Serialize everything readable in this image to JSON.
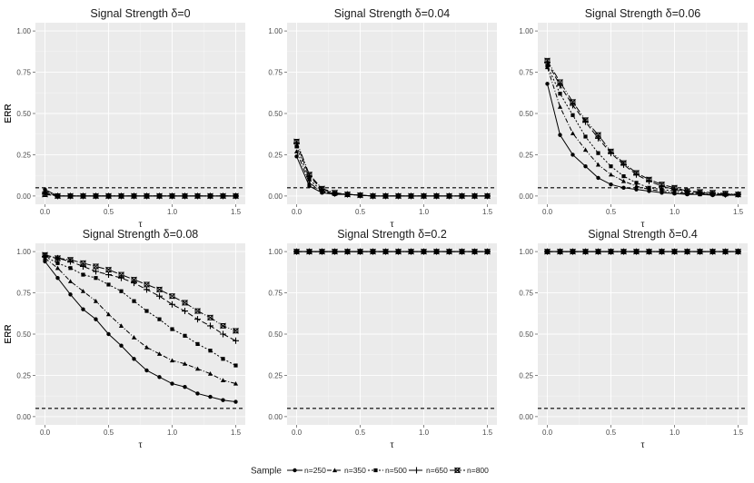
{
  "chart_data": {
    "type": "line",
    "x": [
      0,
      0.1,
      0.2,
      0.3,
      0.4,
      0.5,
      0.6,
      0.7,
      0.8,
      0.9,
      1.0,
      1.1,
      1.2,
      1.3,
      1.4,
      1.5
    ],
    "xlabel": "τ",
    "ylabel": "ERR",
    "xlim": [
      -0.075,
      1.575
    ],
    "ylim": [
      -0.05,
      1.05
    ],
    "x_ticks": [
      0,
      0.5,
      1,
      1.5
    ],
    "x_tick_labels": [
      "0.0",
      "0.5",
      "1.0",
      "1.5"
    ],
    "y_ticks": [
      0,
      0.25,
      0.5,
      0.75,
      1
    ],
    "y_tick_labels": [
      "0.00",
      "0.25",
      "0.50",
      "0.75",
      "1.00"
    ],
    "reference_line": 0.05,
    "legend_title": "Sample",
    "legend_position": "bottom",
    "series_names": [
      "n=250",
      "n=350",
      "n=500",
      "n=650",
      "n=800"
    ],
    "panels": [
      {
        "title": "Signal Strength δ=0",
        "series": [
          {
            "name": "n=250",
            "values": [
              0.04,
              0.0,
              0.0,
              0.0,
              0.0,
              0.0,
              0.0,
              0.0,
              0.0,
              0.0,
              0.0,
              0.0,
              0.0,
              0.0,
              0.0,
              0.0
            ]
          },
          {
            "name": "n=350",
            "values": [
              0.03,
              0.0,
              0.0,
              0.0,
              0.0,
              0.0,
              0.0,
              0.0,
              0.0,
              0.0,
              0.0,
              0.0,
              0.0,
              0.0,
              0.0,
              0.0
            ]
          },
          {
            "name": "n=500",
            "values": [
              0.02,
              0.0,
              0.0,
              0.0,
              0.0,
              0.0,
              0.0,
              0.0,
              0.0,
              0.0,
              0.0,
              0.0,
              0.0,
              0.0,
              0.0,
              0.0
            ]
          },
          {
            "name": "n=650",
            "values": [
              0.015,
              0.0,
              0.0,
              0.0,
              0.0,
              0.0,
              0.0,
              0.0,
              0.0,
              0.0,
              0.0,
              0.0,
              0.0,
              0.0,
              0.0,
              0.0
            ]
          },
          {
            "name": "n=800",
            "values": [
              0.01,
              0.0,
              0.0,
              0.0,
              0.0,
              0.0,
              0.0,
              0.0,
              0.0,
              0.0,
              0.0,
              0.0,
              0.0,
              0.0,
              0.0,
              0.0
            ]
          }
        ]
      },
      {
        "title": "Signal Strength δ=0.04",
        "series": [
          {
            "name": "n=250",
            "values": [
              0.24,
              0.06,
              0.02,
              0.01,
              0.01,
              0.005,
              0.0,
              0.0,
              0.0,
              0.0,
              0.0,
              0.0,
              0.0,
              0.0,
              0.0,
              0.0
            ]
          },
          {
            "name": "n=350",
            "values": [
              0.27,
              0.08,
              0.025,
              0.012,
              0.01,
              0.005,
              0.0,
              0.0,
              0.0,
              0.0,
              0.0,
              0.0,
              0.0,
              0.0,
              0.0,
              0.0
            ]
          },
          {
            "name": "n=500",
            "values": [
              0.3,
              0.1,
              0.03,
              0.015,
              0.01,
              0.005,
              0.0,
              0.0,
              0.0,
              0.0,
              0.0,
              0.0,
              0.0,
              0.0,
              0.0,
              0.0
            ]
          },
          {
            "name": "n=650",
            "values": [
              0.32,
              0.12,
              0.04,
              0.015,
              0.01,
              0.005,
              0.0,
              0.0,
              0.0,
              0.0,
              0.0,
              0.0,
              0.0,
              0.0,
              0.0,
              0.0
            ]
          },
          {
            "name": "n=800",
            "values": [
              0.33,
              0.13,
              0.045,
              0.02,
              0.01,
              0.005,
              0.0,
              0.0,
              0.0,
              0.0,
              0.0,
              0.0,
              0.0,
              0.0,
              0.0,
              0.0
            ]
          }
        ]
      },
      {
        "title": "Signal Strength δ=0.06",
        "series": [
          {
            "name": "n=250",
            "values": [
              0.68,
              0.37,
              0.25,
              0.18,
              0.11,
              0.07,
              0.05,
              0.04,
              0.03,
              0.02,
              0.015,
              0.01,
              0.01,
              0.005,
              0.005,
              0.005
            ]
          },
          {
            "name": "n=350",
            "values": [
              0.78,
              0.54,
              0.38,
              0.28,
              0.19,
              0.13,
              0.09,
              0.06,
              0.04,
              0.03,
              0.02,
              0.015,
              0.01,
              0.01,
              0.01,
              0.005
            ]
          },
          {
            "name": "n=500",
            "values": [
              0.79,
              0.62,
              0.49,
              0.36,
              0.26,
              0.18,
              0.12,
              0.08,
              0.05,
              0.04,
              0.03,
              0.02,
              0.015,
              0.01,
              0.01,
              0.01
            ]
          },
          {
            "name": "n=650",
            "values": [
              0.81,
              0.67,
              0.55,
              0.45,
              0.35,
              0.26,
              0.19,
              0.13,
              0.09,
              0.06,
              0.04,
              0.03,
              0.02,
              0.015,
              0.01,
              0.01
            ]
          },
          {
            "name": "n=800",
            "values": [
              0.82,
              0.69,
              0.57,
              0.46,
              0.37,
              0.27,
              0.2,
              0.14,
              0.1,
              0.07,
              0.05,
              0.03,
              0.025,
              0.02,
              0.015,
              0.01
            ]
          }
        ]
      },
      {
        "title": "Signal Strength δ=0.08",
        "series": [
          {
            "name": "n=250",
            "values": [
              0.94,
              0.84,
              0.74,
              0.65,
              0.59,
              0.5,
              0.43,
              0.35,
              0.28,
              0.24,
              0.2,
              0.18,
              0.14,
              0.12,
              0.1,
              0.09
            ]
          },
          {
            "name": "n=350",
            "values": [
              0.96,
              0.9,
              0.82,
              0.76,
              0.7,
              0.62,
              0.55,
              0.48,
              0.42,
              0.38,
              0.34,
              0.32,
              0.29,
              0.26,
              0.22,
              0.2
            ]
          },
          {
            "name": "n=500",
            "values": [
              0.97,
              0.93,
              0.9,
              0.86,
              0.84,
              0.8,
              0.76,
              0.7,
              0.64,
              0.59,
              0.53,
              0.49,
              0.44,
              0.4,
              0.35,
              0.31
            ]
          },
          {
            "name": "n=650",
            "values": [
              0.97,
              0.96,
              0.94,
              0.91,
              0.88,
              0.86,
              0.84,
              0.81,
              0.77,
              0.73,
              0.68,
              0.64,
              0.59,
              0.55,
              0.5,
              0.46
            ]
          },
          {
            "name": "n=800",
            "values": [
              0.98,
              0.96,
              0.95,
              0.93,
              0.91,
              0.89,
              0.86,
              0.83,
              0.8,
              0.77,
              0.73,
              0.69,
              0.64,
              0.6,
              0.55,
              0.52
            ]
          }
        ]
      },
      {
        "title": "Signal Strength δ=0.2",
        "series": [
          {
            "name": "n=250",
            "values": [
              1,
              1,
              1,
              1,
              1,
              1,
              1,
              1,
              1,
              1,
              1,
              1,
              1,
              1,
              1,
              1
            ]
          },
          {
            "name": "n=350",
            "values": [
              1,
              1,
              1,
              1,
              1,
              1,
              1,
              1,
              1,
              1,
              1,
              1,
              1,
              1,
              1,
              1
            ]
          },
          {
            "name": "n=500",
            "values": [
              1,
              1,
              1,
              1,
              1,
              1,
              1,
              1,
              1,
              1,
              1,
              1,
              1,
              1,
              1,
              1
            ]
          },
          {
            "name": "n=650",
            "values": [
              1,
              1,
              1,
              1,
              1,
              1,
              1,
              1,
              1,
              1,
              1,
              1,
              1,
              1,
              1,
              1
            ]
          },
          {
            "name": "n=800",
            "values": [
              1,
              1,
              1,
              1,
              1,
              1,
              1,
              1,
              1,
              1,
              1,
              1,
              1,
              1,
              1,
              1
            ]
          }
        ]
      },
      {
        "title": "Signal Strength δ=0.4",
        "series": [
          {
            "name": "n=250",
            "values": [
              1,
              1,
              1,
              1,
              1,
              1,
              1,
              1,
              1,
              1,
              1,
              1,
              1,
              1,
              1,
              1
            ]
          },
          {
            "name": "n=350",
            "values": [
              1,
              1,
              1,
              1,
              1,
              1,
              1,
              1,
              1,
              1,
              1,
              1,
              1,
              1,
              1,
              1
            ]
          },
          {
            "name": "n=500",
            "values": [
              1,
              1,
              1,
              1,
              1,
              1,
              1,
              1,
              1,
              1,
              1,
              1,
              1,
              1,
              1,
              1
            ]
          },
          {
            "name": "n=650",
            "values": [
              1,
              1,
              1,
              1,
              1,
              1,
              1,
              1,
              1,
              1,
              1,
              1,
              1,
              1,
              1,
              1
            ]
          },
          {
            "name": "n=800",
            "values": [
              1,
              1,
              1,
              1,
              1,
              1,
              1,
              1,
              1,
              1,
              1,
              1,
              1,
              1,
              1,
              1
            ]
          }
        ]
      }
    ]
  },
  "colors": {
    "panel_background": "#ebebeb",
    "grid_major": "#ffffff",
    "series": "#000000",
    "reference_line": "#000000"
  }
}
